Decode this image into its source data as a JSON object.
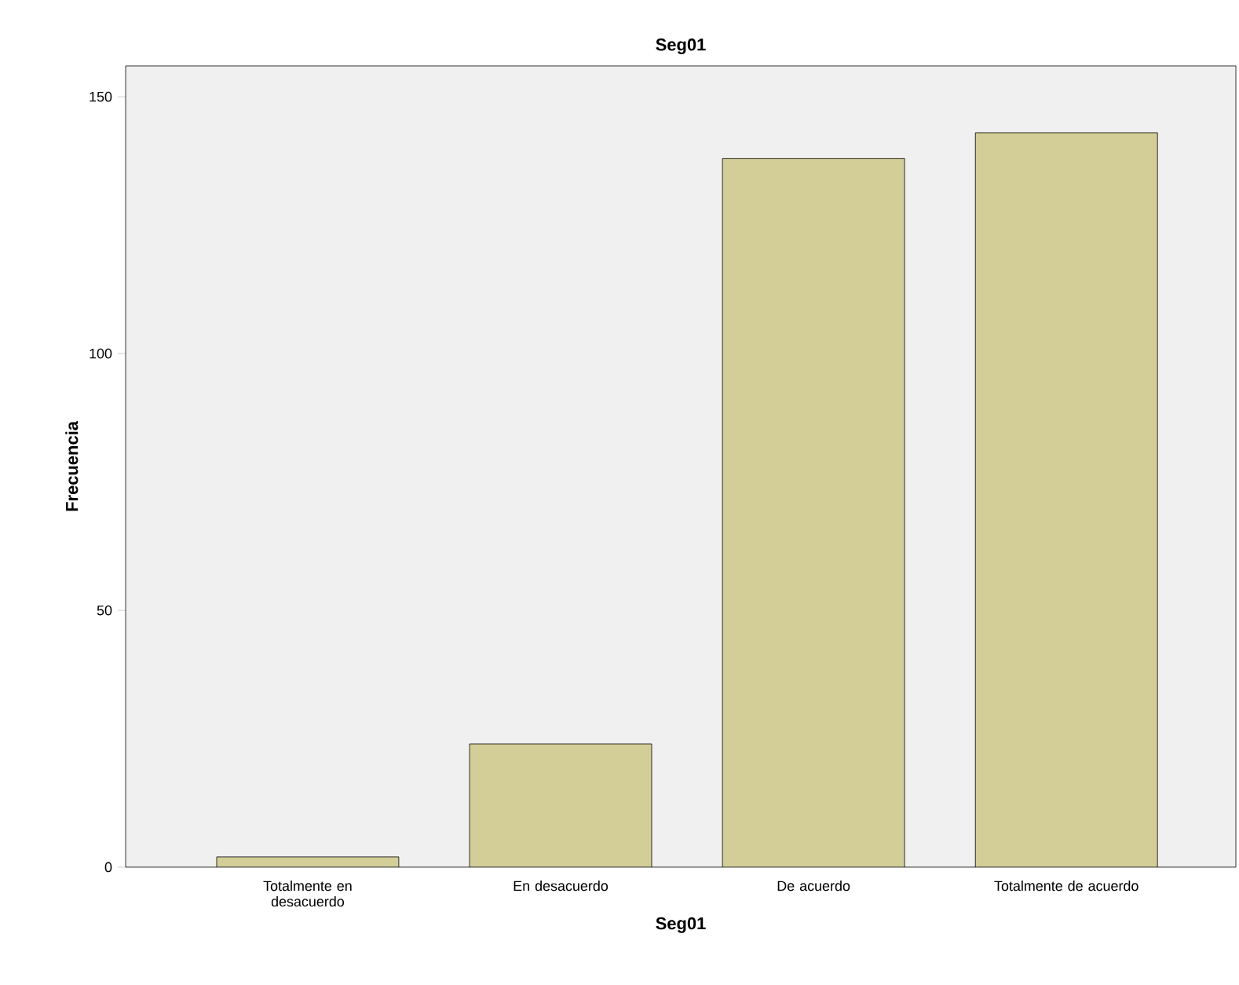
{
  "chart_data": {
    "type": "bar",
    "title": "Seg01",
    "xlabel": "Seg01",
    "ylabel": "Frecuencia",
    "categories": [
      "Totalmente en desacuerdo",
      "En desacuerdo",
      "De acuerdo",
      "Totalmente de acuerdo"
    ],
    "values": [
      2,
      24,
      138,
      143
    ],
    "color": "#d3ce97",
    "ylim": [
      0,
      156
    ],
    "yticks": [
      0,
      50,
      100,
      150
    ],
    "grid": false
  }
}
